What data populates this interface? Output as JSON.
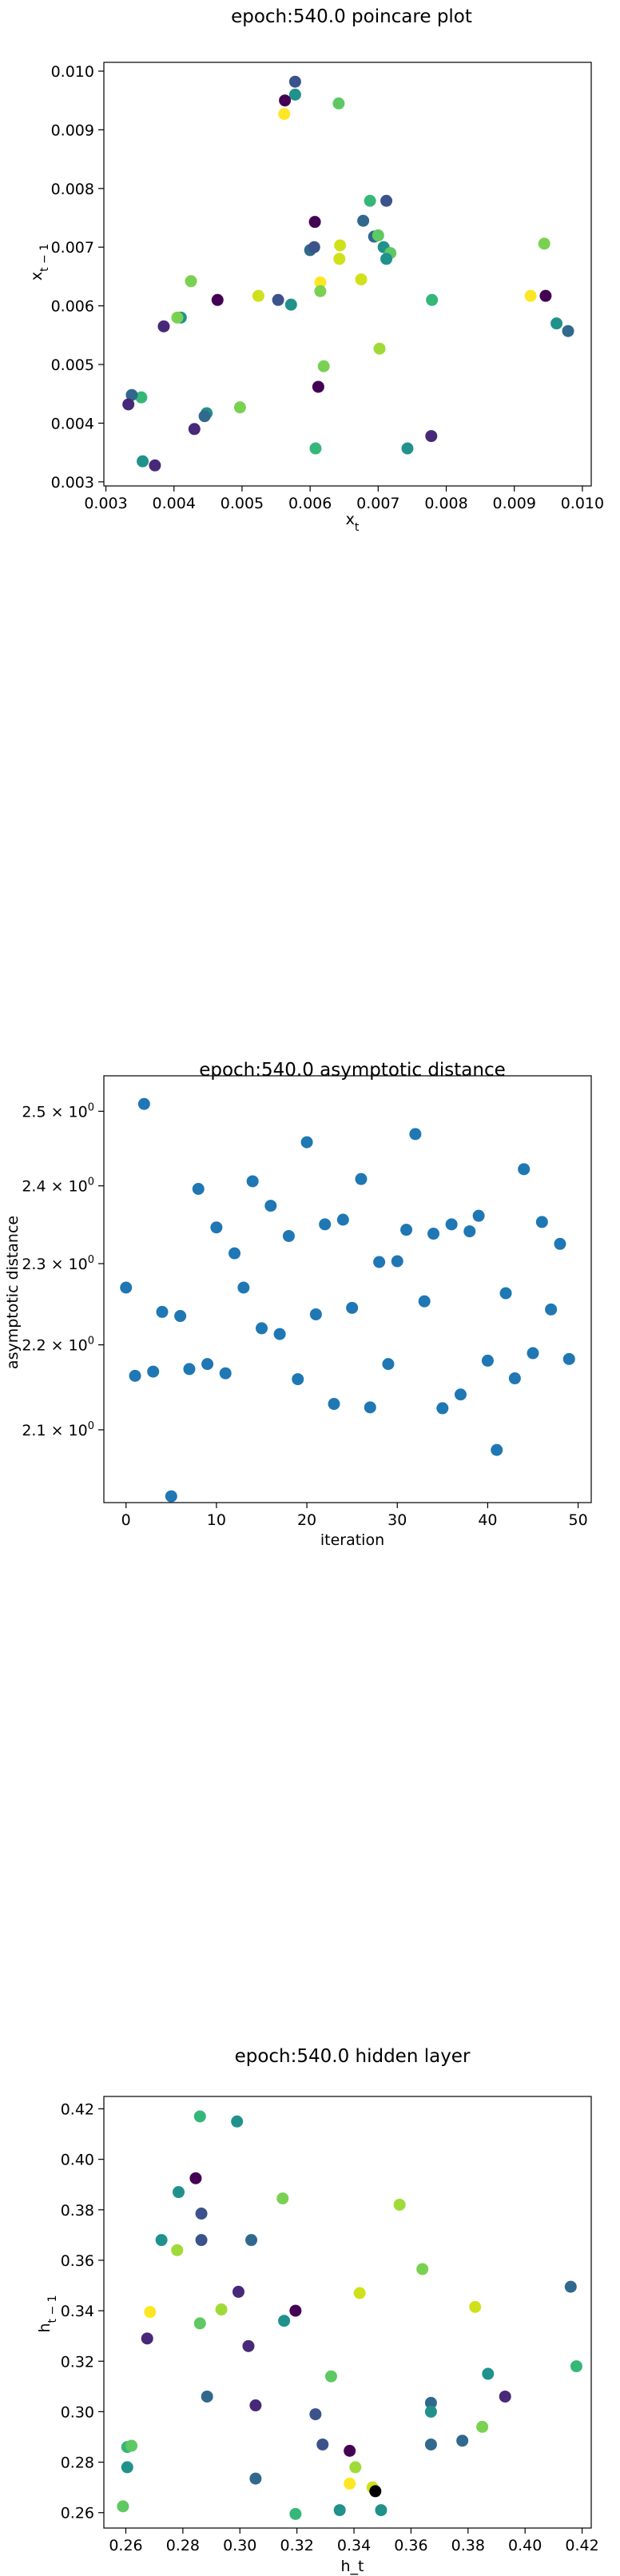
{
  "chart_data": [
    {
      "type": "scatter",
      "title": "epoch:540.0 poincare plot",
      "xlabel_html": "x<tspan baseline-shift='sub' font-size='14'>t</tspan>",
      "ylabel_html": "x<tspan baseline-shift='sub' font-size='14'>t − 1</tspan>",
      "xlim": [
        0.00297,
        0.01013
      ],
      "ylim": [
        0.00293,
        0.01015
      ],
      "xticks": [
        0.003,
        0.004,
        0.005,
        0.006,
        0.007,
        0.008,
        0.009,
        0.01
      ],
      "xtick_labels": [
        "0.003",
        "0.004",
        "0.005",
        "0.006",
        "0.007",
        "0.008",
        "0.009",
        "0.010"
      ],
      "yticks": [
        0.003,
        0.004,
        0.005,
        0.006,
        0.007,
        0.008,
        0.009,
        0.01
      ],
      "ytick_labels": [
        "0.003",
        "0.004",
        "0.005",
        "0.006",
        "0.007",
        "0.008",
        "0.009",
        "0.010"
      ],
      "points": [
        [
          0.00578,
          0.00982,
          "#3b528b"
        ],
        [
          0.00578,
          0.0096,
          "#21918c"
        ],
        [
          0.00563,
          0.0095,
          "#440154"
        ],
        [
          0.00642,
          0.00945,
          "#5ec962"
        ],
        [
          0.00562,
          0.00927,
          "#fde725"
        ],
        [
          0.00712,
          0.00779,
          "#3b528b"
        ],
        [
          0.00688,
          0.00779,
          "#35b779"
        ],
        [
          0.00678,
          0.00745,
          "#31688e"
        ],
        [
          0.00607,
          0.00743,
          "#440154"
        ],
        [
          0.00694,
          0.00718,
          "#31688e"
        ],
        [
          0.007,
          0.0072,
          "#5ec962"
        ],
        [
          0.00708,
          0.007,
          "#21918c"
        ],
        [
          0.00718,
          0.0069,
          "#5ec962"
        ],
        [
          0.00712,
          0.0068,
          "#21918c"
        ],
        [
          0.006,
          0.00695,
          "#31688e"
        ],
        [
          0.00606,
          0.007,
          "#3b528b"
        ],
        [
          0.00644,
          0.00703,
          "#d0e11c"
        ],
        [
          0.00643,
          0.0068,
          "#d0e11c"
        ],
        [
          0.00615,
          0.0064,
          "#fde725"
        ],
        [
          0.00615,
          0.00625,
          "#7ad151"
        ],
        [
          0.00675,
          0.00645,
          "#d0e11c"
        ],
        [
          0.00425,
          0.00642,
          "#7ad151"
        ],
        [
          0.00464,
          0.0061,
          "#440154"
        ],
        [
          0.00524,
          0.00617,
          "#d0e11c"
        ],
        [
          0.00553,
          0.0061,
          "#3b528b"
        ],
        [
          0.00572,
          0.00602,
          "#21918c"
        ],
        [
          0.00779,
          0.0061,
          "#35b779"
        ],
        [
          0.00924,
          0.00617,
          "#fde725"
        ],
        [
          0.00946,
          0.00617,
          "#440154"
        ],
        [
          0.00944,
          0.00706,
          "#7ad151"
        ],
        [
          0.00962,
          0.0057,
          "#21918c"
        ],
        [
          0.00979,
          0.00557,
          "#31688e"
        ],
        [
          0.0041,
          0.0058,
          "#21918c"
        ],
        [
          0.00405,
          0.0058,
          "#7ad151"
        ],
        [
          0.00385,
          0.00565,
          "#482878"
        ],
        [
          0.0062,
          0.00497,
          "#7ad151"
        ],
        [
          0.00702,
          0.00527,
          "#a0da39"
        ],
        [
          0.00612,
          0.00462,
          "#440154"
        ],
        [
          0.00352,
          0.00444,
          "#35b779"
        ],
        [
          0.00338,
          0.00448,
          "#31688e"
        ],
        [
          0.00333,
          0.00432,
          "#482878"
        ],
        [
          0.00448,
          0.00417,
          "#21918c"
        ],
        [
          0.00445,
          0.00412,
          "#31688e"
        ],
        [
          0.00497,
          0.00427,
          "#7ad151"
        ],
        [
          0.0043,
          0.0039,
          "#482878"
        ],
        [
          0.00354,
          0.00335,
          "#21918c"
        ],
        [
          0.00372,
          0.00328,
          "#482878"
        ],
        [
          0.00608,
          0.00357,
          "#35b779"
        ],
        [
          0.00743,
          0.00357,
          "#21918c"
        ],
        [
          0.00778,
          0.00378,
          "#482878"
        ]
      ]
    },
    {
      "type": "scatter",
      "title": "epoch:540.0 asymptotic distance",
      "xlabel": "iteration",
      "ylabel": "asymptotic distance",
      "yscale": "log",
      "xlim": [
        -2.45,
        51.45
      ],
      "ylim": [
        2.018,
        2.549
      ],
      "xticks": [
        0,
        10,
        20,
        30,
        40,
        50
      ],
      "xtick_labels": [
        "0",
        "10",
        "20",
        "30",
        "40",
        "50"
      ],
      "yticks": [
        2.1,
        2.2,
        2.3,
        2.4,
        2.5
      ],
      "ytick_labels": [
        "2.1",
        "2.2",
        "2.3",
        "2.4",
        "2.5"
      ],
      "ytick_base": "× 10",
      "ytick_exp": "0",
      "color": "#1f77b4",
      "x": [
        0,
        1,
        2,
        3,
        4,
        5,
        6,
        7,
        8,
        9,
        10,
        11,
        12,
        13,
        14,
        15,
        16,
        17,
        18,
        19,
        20,
        21,
        22,
        23,
        24,
        25,
        26,
        27,
        28,
        29,
        30,
        31,
        32,
        33,
        34,
        35,
        36,
        37,
        38,
        39,
        40,
        41,
        42,
        43,
        44,
        45,
        46,
        47,
        48,
        49
      ],
      "y": [
        2.27,
        2.163,
        2.51,
        2.168,
        2.24,
        2.025,
        2.235,
        2.171,
        2.396,
        2.177,
        2.346,
        2.166,
        2.313,
        2.27,
        2.406,
        2.22,
        2.374,
        2.213,
        2.335,
        2.159,
        2.458,
        2.237,
        2.35,
        2.13,
        2.356,
        2.245,
        2.409,
        2.126,
        2.302,
        2.177,
        2.303,
        2.343,
        2.469,
        2.253,
        2.338,
        2.125,
        2.35,
        2.141,
        2.341,
        2.361,
        2.181,
        2.077,
        2.263,
        2.16,
        2.422,
        2.19,
        2.353,
        2.243,
        2.325,
        2.183
      ]
    },
    {
      "type": "scatter",
      "title": "epoch:540.0 hidden layer",
      "xlabel": "h_t",
      "ylabel_html": "h<tspan baseline-shift='sub' font-size='14'>t − 1</tspan>",
      "xlim": [
        0.2523,
        0.4232
      ],
      "ylim": [
        0.2539,
        0.4249
      ],
      "xticks": [
        0.26,
        0.28,
        0.3,
        0.32,
        0.34,
        0.36,
        0.38,
        0.4,
        0.42
      ],
      "xtick_labels": [
        "0.26",
        "0.28",
        "0.30",
        "0.32",
        "0.34",
        "0.36",
        "0.38",
        "0.40",
        "0.42"
      ],
      "yticks": [
        0.26,
        0.28,
        0.3,
        0.32,
        0.34,
        0.36,
        0.38,
        0.4,
        0.42
      ],
      "ytick_labels": [
        "0.26",
        "0.28",
        "0.30",
        "0.32",
        "0.34",
        "0.36",
        "0.38",
        "0.40",
        "0.42"
      ],
      "points": [
        [
          0.286,
          0.417,
          "#35b779"
        ],
        [
          0.299,
          0.415,
          "#21918c"
        ],
        [
          0.2845,
          0.3925,
          "#440154"
        ],
        [
          0.2785,
          0.387,
          "#21918c"
        ],
        [
          0.2865,
          0.3785,
          "#3b528b"
        ],
        [
          0.315,
          0.3845,
          "#7ad151"
        ],
        [
          0.356,
          0.382,
          "#a0da39"
        ],
        [
          0.2725,
          0.368,
          "#21918c"
        ],
        [
          0.278,
          0.364,
          "#a0da39"
        ],
        [
          0.2865,
          0.368,
          "#3b528b"
        ],
        [
          0.304,
          0.368,
          "#31688e"
        ],
        [
          0.364,
          0.3565,
          "#7ad151"
        ],
        [
          0.416,
          0.3495,
          "#31688e"
        ],
        [
          0.2995,
          0.3475,
          "#482878"
        ],
        [
          0.342,
          0.347,
          "#d0e11c"
        ],
        [
          0.2685,
          0.3395,
          "#fde725"
        ],
        [
          0.2935,
          0.3405,
          "#a0da39"
        ],
        [
          0.3195,
          0.34,
          "#440154"
        ],
        [
          0.3155,
          0.336,
          "#21918c"
        ],
        [
          0.286,
          0.335,
          "#5ec962"
        ],
        [
          0.3825,
          0.3415,
          "#d0e11c"
        ],
        [
          0.418,
          0.318,
          "#35b779"
        ],
        [
          0.2675,
          0.329,
          "#482878"
        ],
        [
          0.303,
          0.326,
          "#482878"
        ],
        [
          0.332,
          0.314,
          "#5ec962"
        ],
        [
          0.387,
          0.315,
          "#21918c"
        ],
        [
          0.2885,
          0.306,
          "#31688e"
        ],
        [
          0.367,
          0.3035,
          "#31688e"
        ],
        [
          0.393,
          0.306,
          "#482878"
        ],
        [
          0.3055,
          0.3025,
          "#482878"
        ],
        [
          0.3265,
          0.299,
          "#3b528b"
        ],
        [
          0.367,
          0.3,
          "#21918c"
        ],
        [
          0.385,
          0.294,
          "#7ad151"
        ],
        [
          0.2605,
          0.286,
          "#35b779"
        ],
        [
          0.262,
          0.2865,
          "#5ec962"
        ],
        [
          0.329,
          0.287,
          "#3b528b"
        ],
        [
          0.367,
          0.287,
          "#31688e"
        ],
        [
          0.378,
          0.2885,
          "#31688e"
        ],
        [
          0.3385,
          0.2845,
          "#440154"
        ],
        [
          0.2605,
          0.278,
          "#21918c"
        ],
        [
          0.3405,
          0.278,
          "#a0da39"
        ],
        [
          0.3055,
          0.2735,
          "#31688e"
        ],
        [
          0.3385,
          0.2715,
          "#fde725"
        ],
        [
          0.3465,
          0.27,
          "#d0e11c"
        ],
        [
          0.3475,
          0.2685,
          "#000000"
        ],
        [
          0.259,
          0.2625,
          "#5ec962"
        ],
        [
          0.3195,
          0.2595,
          "#35b779"
        ],
        [
          0.335,
          0.261,
          "#21918c"
        ],
        [
          0.3495,
          0.261,
          "#21918c"
        ]
      ]
    }
  ]
}
